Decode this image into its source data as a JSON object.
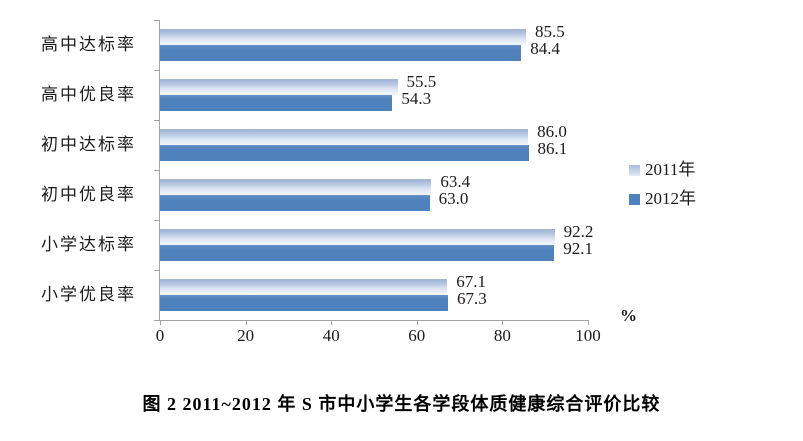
{
  "chart_data": {
    "type": "bar",
    "orientation": "horizontal",
    "categories": [
      "高中达标率",
      "高中优良率",
      "初中达标率",
      "初中优良率",
      "小学达标率",
      "小学优良率"
    ],
    "series": [
      {
        "name": "2011年",
        "values": [
          85.5,
          55.5,
          86.0,
          63.4,
          92.2,
          67.1
        ],
        "labels": [
          "85.5",
          "55.5",
          "86.0",
          "63.4",
          "92.2",
          "67.1"
        ],
        "color": "#b9c8e2"
      },
      {
        "name": "2012年",
        "values": [
          84.4,
          54.3,
          86.1,
          63.0,
          92.1,
          67.3
        ],
        "labels": [
          "84.4",
          "54.3",
          "86.1",
          "63.0",
          "92.1",
          "67.3"
        ],
        "color": "#4f81bd"
      }
    ],
    "x_ticks": [
      "0",
      "20",
      "40",
      "60",
      "80",
      "100"
    ],
    "xlim": [
      0,
      100
    ],
    "xlabel": "%",
    "legend": [
      "2011年",
      "2012年"
    ],
    "legend_position": "right",
    "grid": false
  },
  "caption": "图 2  2011~2012 年 S 市中小学生各学段体质健康综合评价比较",
  "colors": {
    "bar_2011_top": "#9fb3d6",
    "bar_2011_bottom": "#f4f7fb",
    "bar_2012": "#4f81bd",
    "axis": "#a3a3a3",
    "text": "#1c1c1c"
  }
}
